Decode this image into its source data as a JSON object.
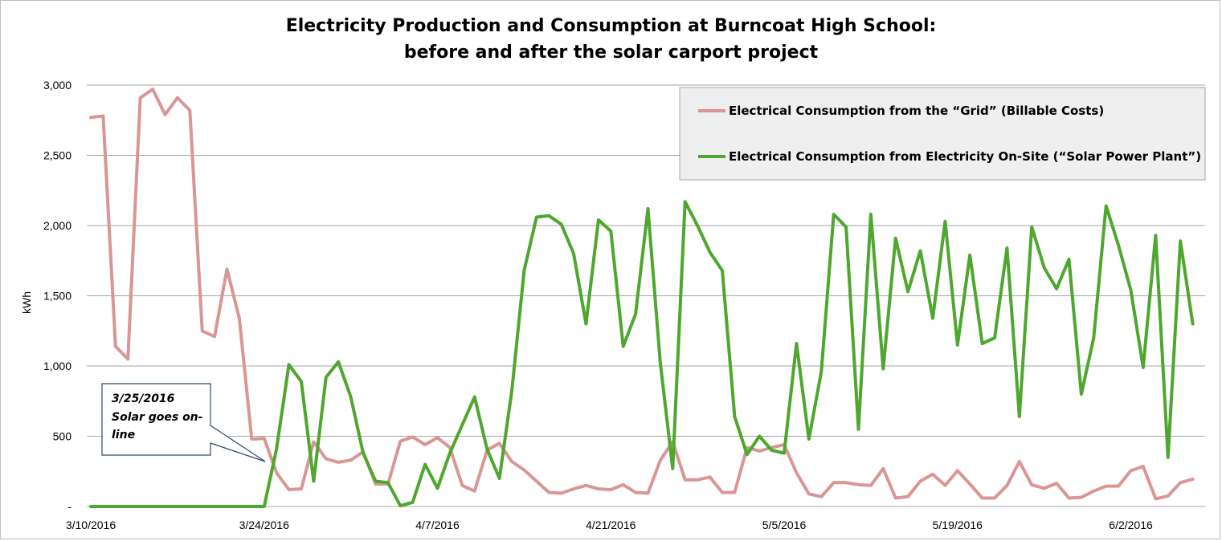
{
  "chart_data": {
    "type": "line",
    "title_line1": "Electricity Production and Consumption at Burncoat High School:",
    "title_line2": "before and after the solar carport project",
    "ylabel": "kWh",
    "ylim": [
      0,
      3000
    ],
    "yticks": [
      0,
      500,
      1000,
      1500,
      2000,
      2500,
      3000
    ],
    "ytick_labels": [
      "-",
      "500",
      "1,000",
      "1,500",
      "2,000",
      "2,500",
      "3,000"
    ],
    "x_start": "3/10/2016",
    "x_end": "6/8/2016",
    "xtick_labels": [
      "3/10/2016",
      "3/24/2016",
      "4/7/2016",
      "4/21/2016",
      "5/5/2016",
      "5/19/2016",
      "6/2/2016"
    ],
    "grid": true,
    "legend_position": "top-right",
    "annotation": {
      "line1": "3/25/2016",
      "line2": "Solar goes on-",
      "line3": "line"
    },
    "series": [
      {
        "name": "Electrical Consumption from the “Grid” (Billable Costs)",
        "color": "#d99694",
        "values": [
          2770,
          2780,
          1140,
          1050,
          2910,
          2970,
          2790,
          2910,
          2820,
          1250,
          1210,
          1690,
          1340,
          480,
          485,
          240,
          120,
          125,
          460,
          340,
          315,
          330,
          390,
          160,
          160,
          465,
          495,
          440,
          490,
          420,
          150,
          110,
          400,
          450,
          320,
          260,
          180,
          100,
          95,
          125,
          150,
          125,
          120,
          155,
          100,
          95,
          330,
          460,
          190,
          190,
          210,
          100,
          100,
          420,
          395,
          420,
          440,
          240,
          90,
          70,
          170,
          170,
          155,
          150,
          270,
          60,
          70,
          180,
          230,
          150,
          255,
          160,
          60,
          60,
          150,
          320,
          155,
          130,
          165,
          60,
          65,
          110,
          145,
          145,
          255,
          285,
          55,
          75,
          170,
          195
        ]
      },
      {
        "name": "Electrical Consumption from Electricity On-Site (“Solar Power Plant”)",
        "color": "#4ea72e",
        "values": [
          0,
          0,
          0,
          0,
          0,
          0,
          0,
          0,
          0,
          0,
          0,
          0,
          0,
          0,
          0,
          410,
          1010,
          890,
          180,
          920,
          1030,
          780,
          380,
          180,
          170,
          5,
          30,
          300,
          130,
          380,
          580,
          780,
          410,
          200,
          820,
          1680,
          2060,
          2070,
          2010,
          1800,
          1300,
          2040,
          1960,
          1140,
          1370,
          2120,
          1020,
          270,
          2170,
          2000,
          1810,
          1680,
          640,
          370,
          500,
          400,
          380,
          1160,
          480,
          960,
          2080,
          1990,
          550,
          2080,
          980,
          1910,
          1530,
          1820,
          1340,
          2030,
          1150,
          1790,
          1160,
          1200,
          1840,
          640,
          1990,
          1700,
          1550,
          1760,
          800,
          1200,
          2140,
          1860,
          1540,
          990,
          1930,
          350,
          1890,
          1300
        ]
      }
    ]
  }
}
